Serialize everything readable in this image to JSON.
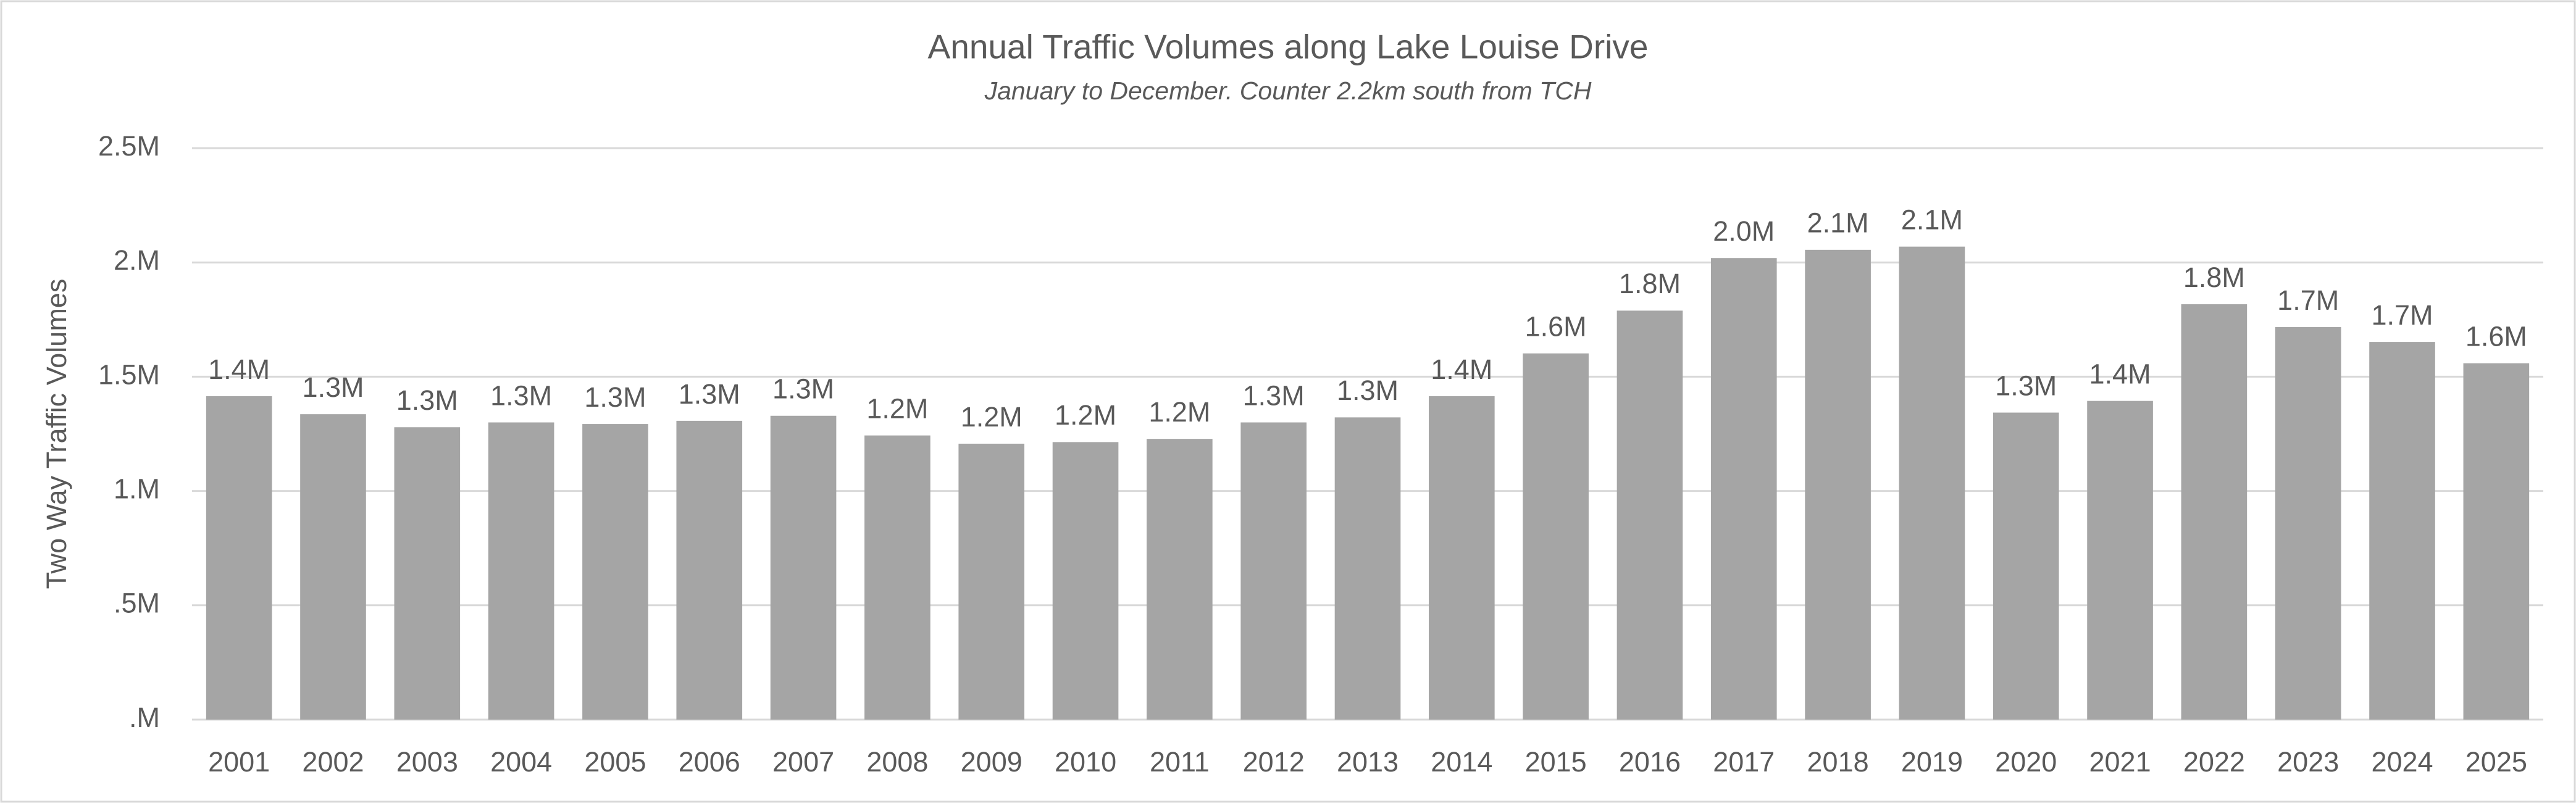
{
  "chart_data": {
    "type": "bar",
    "title": "Annual Traffic Volumes along Lake Louise Drive",
    "subtitle": "January to December. Counter 2.2km south from TCH",
    "y_label": "Two Way Traffic Volumes",
    "categories": [
      "2001",
      "2002",
      "2003",
      "2004",
      "2005",
      "2006",
      "2007",
      "2008",
      "2009",
      "2010",
      "2011",
      "2012",
      "2013",
      "2014",
      "2015",
      "2016",
      "2017",
      "2018",
      "2019",
      "2020",
      "2021",
      "2022",
      "2023",
      "2024",
      "2025"
    ],
    "values": [
      1415000,
      1336000,
      1279000,
      1300000,
      1293000,
      1307000,
      1329000,
      1243000,
      1207000,
      1214000,
      1228000,
      1300000,
      1322000,
      1415000,
      1602000,
      1789000,
      2019000,
      2055000,
      2069000,
      1343000,
      1394000,
      1817000,
      1717000,
      1652000,
      1559000
    ],
    "value_labels": [
      "1.4M",
      "1.3M",
      "1.3M",
      "1.3M",
      "1.3M",
      "1.3M",
      "1.3M",
      "1.2M",
      "1.2M",
      "1.2M",
      "1.2M",
      "1.3M",
      "1.3M",
      "1.4M",
      "1.6M",
      "1.8M",
      "2.0M",
      "2.1M",
      "2.1M",
      "1.3M",
      "1.4M",
      "1.8M",
      "1.7M",
      "1.7M",
      "1.6M"
    ],
    "color": "#a5a5a5",
    "ylim": [
      0,
      2500000
    ],
    "yticks": [
      {
        "value": 0,
        "label": ".M"
      },
      {
        "value": 500000,
        "label": ".5M"
      },
      {
        "value": 1000000,
        "label": "1.M"
      },
      {
        "value": 1500000,
        "label": "1.5M"
      },
      {
        "value": 2000000,
        "label": "2.M"
      },
      {
        "value": 2500000,
        "label": "2.5M"
      }
    ],
    "grid": true
  }
}
